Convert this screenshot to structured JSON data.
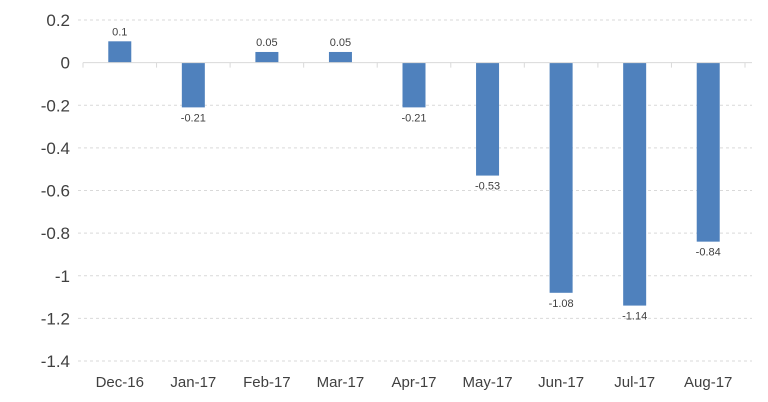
{
  "chart_data": {
    "type": "bar",
    "title": "",
    "xlabel": "",
    "ylabel": "",
    "categories": [
      "Dec-16",
      "Jan-17",
      "Feb-17",
      "Mar-17",
      "Apr-17",
      "May-17",
      "Jun-17",
      "Jul-17",
      "Aug-17"
    ],
    "values": [
      0.1,
      -0.21,
      0.05,
      0.05,
      -0.21,
      -0.53,
      -1.08,
      -1.14,
      -0.84
    ],
    "data_labels": [
      "0.1",
      "-0.21",
      "0.05",
      "0.05",
      "-0.21",
      "-0.53",
      "-1.08",
      "-1.14",
      "-0.84"
    ],
    "ylim": [
      -1.4,
      0.2
    ],
    "yticks": [
      0.2,
      0,
      -0.2,
      -0.4,
      -0.6,
      -0.8,
      -1,
      -1.2,
      -1.4
    ],
    "ytick_labels": [
      "0.2",
      "0",
      "-0.2",
      "-0.4",
      "-0.6",
      "-0.8",
      "-1",
      "-1.2",
      "-1.4"
    ],
    "grid": "horizontal dashed",
    "legend": "none",
    "bar_color": "#4f81bd",
    "grid_color": "#d9d9d9",
    "axis_color": "#d9d9d9"
  }
}
